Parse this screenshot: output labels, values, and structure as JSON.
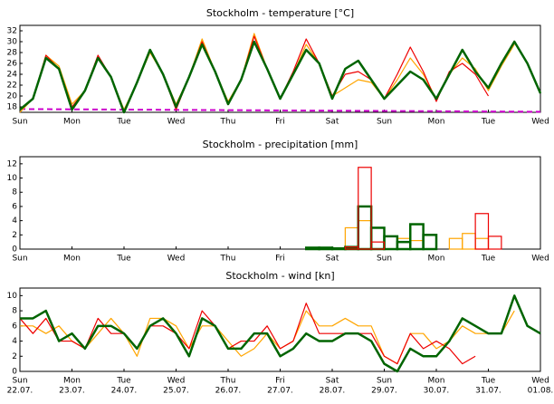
{
  "chart_data": [
    {
      "type": "line",
      "title": "Stockholm - temperature [°C]",
      "x": [
        0,
        0.25,
        0.5,
        0.75,
        1,
        1.25,
        1.5,
        1.75,
        2,
        2.25,
        2.5,
        2.75,
        3,
        3.25,
        3.5,
        3.75,
        4,
        4.25,
        4.5,
        4.75,
        5,
        5.25,
        5.5,
        5.75,
        6,
        6.25,
        6.5,
        6.75,
        7,
        7.25,
        7.5,
        7.75,
        8,
        8.25,
        8.5,
        8.75,
        9,
        9.25,
        9.5,
        9.75,
        10
      ],
      "xlim": [
        0,
        10
      ],
      "xticks": [
        {
          "value": 0,
          "label": "Sun"
        },
        {
          "value": 1,
          "label": "Mon"
        },
        {
          "value": 2,
          "label": "Tue"
        },
        {
          "value": 3,
          "label": "Wed"
        },
        {
          "value": 4,
          "label": "Thu"
        },
        {
          "value": 5,
          "label": "Fri"
        },
        {
          "value": 6,
          "label": "Sat"
        },
        {
          "value": 7,
          "label": "Sun"
        },
        {
          "value": 8,
          "label": "Mon"
        },
        {
          "value": 9,
          "label": "Tue"
        },
        {
          "value": 10,
          "label": "Wed"
        }
      ],
      "ylim": [
        17,
        33
      ],
      "yticks": [
        18,
        20,
        22,
        24,
        26,
        28,
        30,
        32
      ],
      "series": [
        {
          "color": "#cc00cc",
          "dashed": true,
          "line_width": 2,
          "x": [
            0,
            10
          ],
          "values": [
            17.6,
            17.1
          ]
        },
        {
          "color": "#ffa500",
          "line_width": 1.2,
          "values": [
            17,
            19.5,
            27.5,
            25.5,
            18.5,
            21,
            27,
            23.5,
            17.5,
            22.5,
            28,
            24,
            18.5,
            23.5,
            30.5,
            24.5,
            19,
            23,
            31.5,
            25,
            19.5,
            24,
            29.5,
            26,
            20,
            21.5,
            23,
            22.5,
            19.5,
            23,
            27,
            24,
            19.5,
            24,
            27,
            25,
            21,
            25.5,
            29.5,
            null,
            null
          ]
        },
        {
          "color": "#ee0000",
          "line_width": 1.2,
          "values": [
            17.5,
            19.5,
            27.5,
            25,
            18,
            21,
            27.5,
            23.5,
            17,
            22.5,
            28.5,
            24,
            17.5,
            23.5,
            30,
            24.5,
            18.5,
            23,
            31,
            25,
            19.5,
            24.5,
            30.5,
            26,
            20,
            24,
            24.5,
            23,
            19.5,
            24,
            29,
            24.5,
            19,
            24.5,
            26,
            24,
            20,
            null,
            null,
            null,
            null
          ]
        },
        {
          "color": "#006400",
          "line_width": 2.5,
          "values": [
            17.5,
            19.5,
            27,
            25,
            17.5,
            21,
            27,
            23.5,
            17,
            22.5,
            28.5,
            24,
            18,
            23.5,
            29.5,
            24.5,
            18.5,
            23,
            30,
            25,
            19.5,
            24,
            28.5,
            26,
            19.5,
            25,
            26.5,
            23,
            19.5,
            22,
            24.5,
            23,
            19.5,
            24,
            28.5,
            24.5,
            21.5,
            26,
            30,
            26,
            20.5
          ]
        }
      ]
    },
    {
      "type": "histogram",
      "title": "Stockholm - precipitation [mm]",
      "bins": [
        0,
        0.25,
        0.5,
        0.75,
        1,
        1.25,
        1.5,
        1.75,
        2,
        2.25,
        2.5,
        2.75,
        3,
        3.25,
        3.5,
        3.75,
        4,
        4.25,
        4.5,
        4.75,
        5,
        5.25,
        5.5,
        5.75,
        6,
        6.25,
        6.5,
        6.75,
        7,
        7.25,
        7.5,
        7.75,
        8,
        8.25,
        8.5,
        8.75,
        9,
        9.25,
        9.5,
        9.75,
        10
      ],
      "xlim": [
        0,
        10
      ],
      "xticks": [
        {
          "value": 0,
          "label": "Sun"
        },
        {
          "value": 1,
          "label": "Mon"
        },
        {
          "value": 2,
          "label": "Tue"
        },
        {
          "value": 3,
          "label": "Wed"
        },
        {
          "value": 4,
          "label": "Thu"
        },
        {
          "value": 5,
          "label": "Fri"
        },
        {
          "value": 6,
          "label": "Sat"
        },
        {
          "value": 7,
          "label": "Sun"
        },
        {
          "value": 8,
          "label": "Mon"
        },
        {
          "value": 9,
          "label": "Tue"
        },
        {
          "value": 10,
          "label": "Wed"
        }
      ],
      "ylim": [
        0,
        13
      ],
      "yticks": [
        0,
        2,
        4,
        6,
        8,
        10,
        12
      ],
      "series": [
        {
          "color": "#ffa500",
          "line_width": 1.2,
          "values": [
            0,
            0,
            0,
            0,
            0,
            0,
            0,
            0,
            0,
            0,
            0,
            0,
            0,
            0,
            0,
            0,
            0,
            0,
            0,
            0,
            0,
            0,
            0,
            0,
            0,
            3,
            4,
            3,
            0,
            1.5,
            1.2,
            0,
            0,
            1.5,
            2.2,
            1.5,
            0,
            null,
            null,
            null
          ]
        },
        {
          "color": "#006400",
          "line_width": 2.5,
          "values": [
            0,
            0,
            0,
            0,
            0,
            0,
            0,
            0,
            0,
            0,
            0,
            0,
            0,
            0,
            0,
            0,
            0,
            0,
            0,
            0,
            0,
            0,
            0.2,
            0.2,
            0.1,
            0.3,
            6,
            3,
            1.8,
            1,
            3.5,
            2,
            0,
            null,
            null,
            null,
            null,
            null,
            null,
            null
          ]
        },
        {
          "color": "#ee0000",
          "line_width": 1.2,
          "values": [
            0,
            0,
            0,
            0,
            0,
            0,
            0,
            0,
            0,
            0,
            0,
            0,
            0,
            0,
            0,
            0,
            0,
            0,
            0,
            0,
            0,
            0,
            0,
            0,
            0,
            0.3,
            11.5,
            1,
            0,
            0,
            0,
            0,
            0,
            0,
            0,
            5,
            1.8,
            null,
            null,
            null
          ]
        }
      ]
    },
    {
      "type": "line",
      "title": "Stockholm - wind [kn]",
      "x": [
        0,
        0.25,
        0.5,
        0.75,
        1,
        1.25,
        1.5,
        1.75,
        2,
        2.25,
        2.5,
        2.75,
        3,
        3.25,
        3.5,
        3.75,
        4,
        4.25,
        4.5,
        4.75,
        5,
        5.25,
        5.5,
        5.75,
        6,
        6.25,
        6.5,
        6.75,
        7,
        7.25,
        7.5,
        7.75,
        8,
        8.25,
        8.5,
        8.75,
        9,
        9.25,
        9.5,
        9.75,
        10
      ],
      "xlim": [
        0,
        10
      ],
      "xticks": [
        {
          "value": 0,
          "label": "Sun",
          "date": "22.07."
        },
        {
          "value": 1,
          "label": "Mon",
          "date": "23.07."
        },
        {
          "value": 2,
          "label": "Tue",
          "date": "24.07."
        },
        {
          "value": 3,
          "label": "Wed",
          "date": "25.07."
        },
        {
          "value": 4,
          "label": "Thu",
          "date": "26.07."
        },
        {
          "value": 5,
          "label": "Fri",
          "date": "27.07."
        },
        {
          "value": 6,
          "label": "Sat",
          "date": "28.07."
        },
        {
          "value": 7,
          "label": "Sun",
          "date": "29.07."
        },
        {
          "value": 8,
          "label": "Mon",
          "date": "30.07."
        },
        {
          "value": 9,
          "label": "Tue",
          "date": "31.07."
        },
        {
          "value": 10,
          "label": "Wed",
          "date": "01.08."
        }
      ],
      "ylim": [
        0,
        11
      ],
      "yticks": [
        0,
        2,
        4,
        6,
        8,
        10
      ],
      "series": [
        {
          "color": "#ffa500",
          "line_width": 1.2,
          "values": [
            6,
            6,
            5,
            6,
            4,
            3,
            5,
            7,
            5,
            2,
            7,
            7,
            6,
            3,
            6,
            6,
            4,
            2,
            3,
            5,
            3,
            4,
            8,
            6,
            6,
            7,
            6,
            6,
            2,
            1,
            5,
            5,
            3,
            4,
            6,
            5,
            5,
            5,
            8,
            null,
            null
          ]
        },
        {
          "color": "#ee0000",
          "line_width": 1.2,
          "values": [
            7,
            5,
            7,
            4,
            4,
            3,
            7,
            5,
            5,
            3,
            6,
            6,
            5,
            3,
            8,
            6,
            3,
            4,
            4,
            6,
            3,
            4,
            9,
            5,
            5,
            5,
            5,
            5,
            2,
            1,
            5,
            3,
            4,
            3,
            1,
            2,
            null,
            null,
            null,
            null,
            null
          ]
        },
        {
          "color": "#006400",
          "line_width": 2.5,
          "values": [
            7,
            7,
            8,
            4,
            5,
            3,
            6,
            6,
            5,
            3,
            6,
            7,
            5,
            2,
            7,
            6,
            3,
            3,
            5,
            5,
            2,
            3,
            5,
            4,
            4,
            5,
            5,
            4,
            1,
            0,
            3,
            2,
            2,
            4,
            7,
            6,
            5,
            5,
            10,
            6,
            5
          ]
        }
      ]
    }
  ]
}
